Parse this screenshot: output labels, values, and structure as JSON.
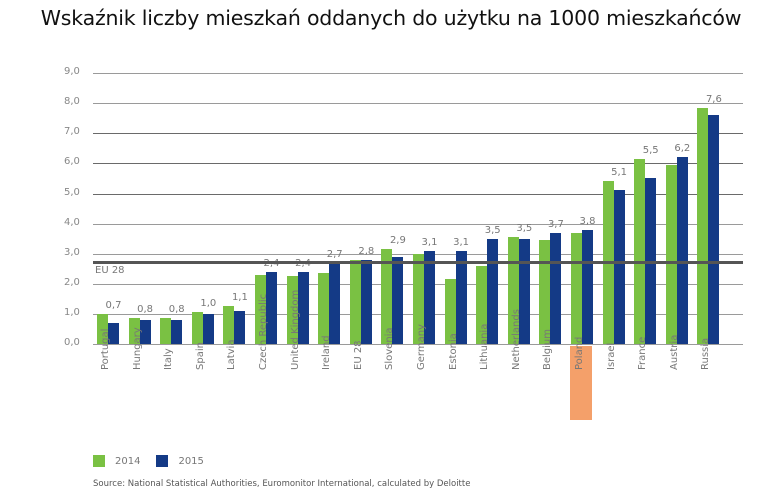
{
  "title": "Wskaźnik liczby mieszkań oddanych do użytku na 1000 mieszkańców",
  "chart_data": {
    "type": "bar",
    "title": "Wskaźnik liczby mieszkań oddanych do użytku na 1000 mieszkańców",
    "xlabel": "",
    "ylabel": "",
    "ylim": [
      0,
      9
    ],
    "yticks": [
      "0,0",
      "1,0",
      "2,0",
      "3,0",
      "4,0",
      "5,0",
      "6,0",
      "7,0",
      "8,0",
      "9,0"
    ],
    "grid": true,
    "legend_position": "bottom-left",
    "categories": [
      "Portugal",
      "Hungary",
      "Italy",
      "Spain",
      "Latvia",
      "Czech Republic",
      "United Kingdom",
      "Ireland",
      "EU 28",
      "Slovenia",
      "Germany",
      "Estonia",
      "Lithuania",
      "Netherlands",
      "Belgium",
      "Poland",
      "Israel",
      "France",
      "Austria",
      "Russia"
    ],
    "series": [
      {
        "name": "2014",
        "color": "#7ac143",
        "values": [
          1.0,
          0.85,
          0.87,
          1.05,
          1.25,
          2.3,
          2.25,
          2.35,
          2.8,
          3.15,
          3.0,
          2.15,
          2.6,
          3.55,
          3.45,
          3.7,
          5.4,
          6.15,
          5.95,
          7.85
        ]
      },
      {
        "name": "2015",
        "color": "#143a86",
        "values": [
          0.7,
          0.8,
          0.8,
          1.0,
          1.1,
          2.4,
          2.4,
          2.7,
          2.8,
          2.9,
          3.1,
          3.1,
          3.5,
          3.5,
          3.7,
          3.8,
          5.1,
          5.5,
          6.2,
          7.6
        ]
      }
    ],
    "data_labels_2015": [
      "0,7",
      "0,8",
      "0,8",
      "1,0",
      "1,1",
      "2,4",
      "2,4",
      "2,7",
      "2,8",
      "2,9",
      "3,1",
      "3,1",
      "3,5",
      "3,5",
      "3,7",
      "3,8",
      "5,1",
      "5,5",
      "6,2",
      "7,6"
    ],
    "reference_line": {
      "label": "EU 28",
      "value": 2.72
    },
    "highlighted_category": "Poland",
    "highlight_color": "#f4a06a",
    "source": "Source: National Statistical Authorities, Euromonitor International, calculated by Deloitte"
  },
  "legend": [
    {
      "label": "2014",
      "color": "#7ac143"
    },
    {
      "label": "2015",
      "color": "#143a86"
    }
  ],
  "source": "Source: National Statistical Authorities, Euromonitor International, calculated by Deloitte"
}
